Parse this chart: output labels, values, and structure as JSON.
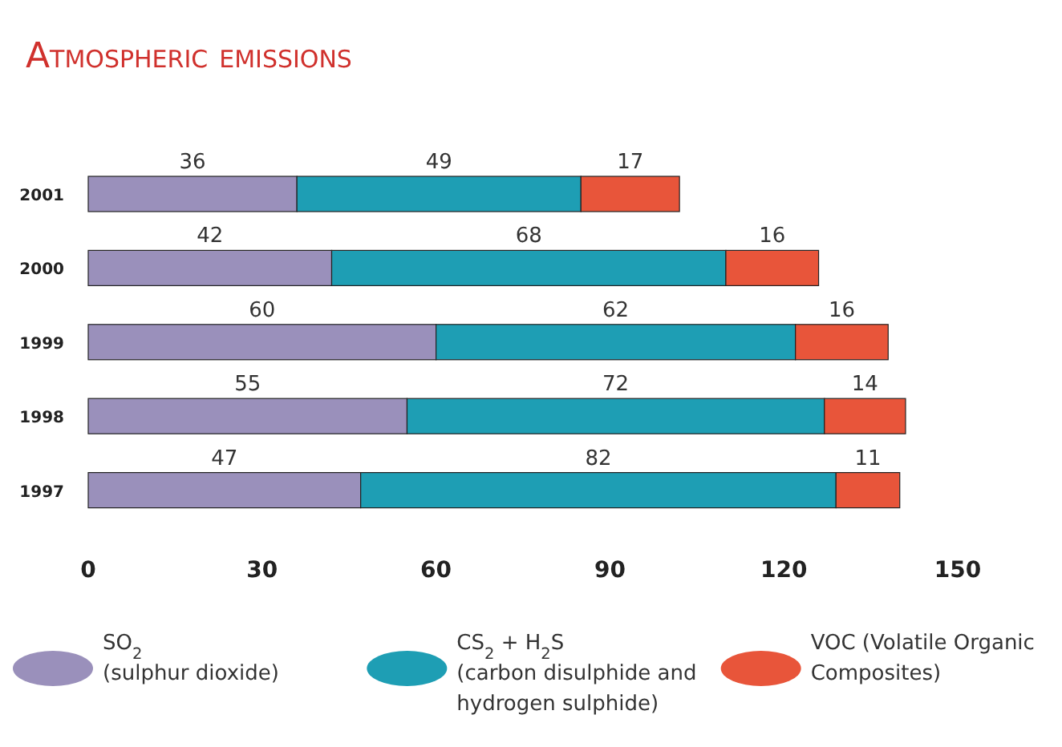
{
  "chart_data": {
    "type": "bar",
    "orientation": "horizontal",
    "stacked": true,
    "title": "Atmospheric emissions",
    "categories": [
      "2001",
      "2000",
      "1999",
      "1998",
      "1997"
    ],
    "series": [
      {
        "name": "SO$_{2}$\n(sulphur dioxide)",
        "color": "#9a90bb",
        "values": [
          36,
          42,
          60,
          55,
          47
        ]
      },
      {
        "name": "CS$_{2}$ + H$_{2}$S\n(carbon disulphide and\nhydrogen sulphide)",
        "color": "#1e9eb4",
        "values": [
          49,
          68,
          62,
          72,
          82
        ]
      },
      {
        "name": "VOC (Volatile Organic\nComposites)",
        "color": "#e8553a",
        "values": [
          17,
          16,
          16,
          14,
          11
        ]
      }
    ],
    "xlim": [
      0,
      150
    ],
    "xticks": [
      0,
      30,
      60,
      90,
      120,
      150
    ],
    "grid": false,
    "data_labels": true,
    "legend": "bottom"
  }
}
